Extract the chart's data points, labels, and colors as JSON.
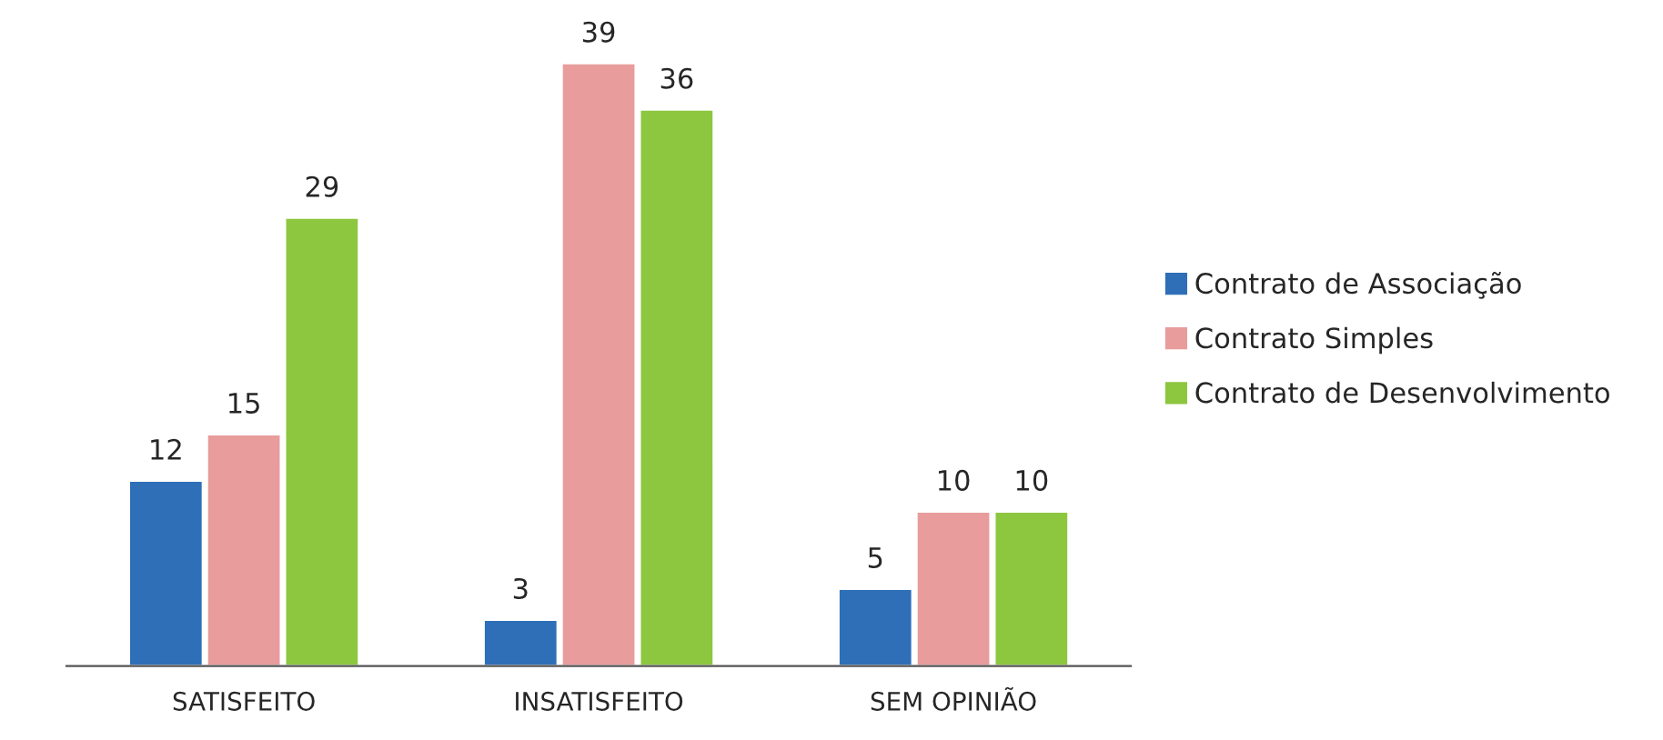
{
  "chart_data": {
    "type": "bar",
    "categories": [
      "SATISFEITO",
      "INSATISFEITO",
      "SEM OPINIÃO"
    ],
    "series": [
      {
        "name": "Contrato de Associação",
        "color": "#2f6fb8",
        "values": [
          12,
          3,
          5
        ]
      },
      {
        "name": "Contrato Simples",
        "color": "#e89c9c",
        "values": [
          15,
          39,
          10
        ]
      },
      {
        "name": "Contrato de Desenvolvimento",
        "color": "#8dc63f",
        "values": [
          29,
          36,
          10
        ]
      }
    ],
    "data_labels": true,
    "legend": "right",
    "grid": false
  }
}
